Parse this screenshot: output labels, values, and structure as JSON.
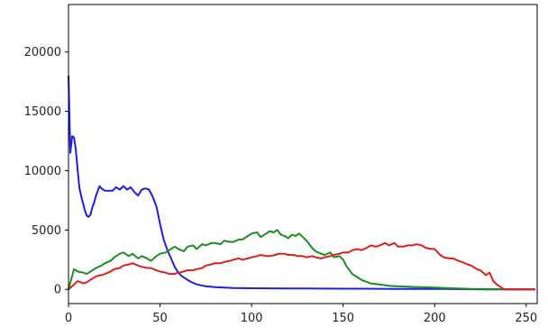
{
  "chart_data": {
    "type": "line",
    "title": "",
    "xlabel": "",
    "ylabel": "",
    "xlim": [
      0,
      256
    ],
    "ylim": [
      -1200,
      24000
    ],
    "grid": false,
    "x_ticks": [
      0,
      50,
      100,
      150,
      200,
      250
    ],
    "y_ticks": [
      0,
      5000,
      10000,
      15000,
      20000
    ],
    "series": [
      {
        "color": "#1f1fe0",
        "x": [
          0,
          1,
          2,
          3,
          4,
          5,
          6,
          7,
          8,
          9,
          10,
          11,
          12,
          13,
          14,
          15,
          16,
          17,
          18,
          20,
          22,
          24,
          26,
          28,
          30,
          32,
          34,
          36,
          38,
          40,
          42,
          44,
          46,
          48,
          50,
          52,
          54,
          56,
          58,
          60,
          62,
          64,
          66,
          68,
          70,
          75,
          80,
          85,
          90,
          100,
          110,
          120,
          130,
          140,
          150,
          160,
          170,
          180,
          190,
          200,
          210,
          220,
          230,
          240,
          250,
          255
        ],
        "y": [
          18000,
          11500,
          12900,
          12800,
          11800,
          10000,
          8500,
          7800,
          7200,
          6600,
          6200,
          6100,
          6300,
          6900,
          7300,
          7900,
          8300,
          8700,
          8500,
          8300,
          8300,
          8300,
          8600,
          8400,
          8700,
          8400,
          8600,
          8200,
          7900,
          8400,
          8500,
          8400,
          7800,
          7000,
          5500,
          4200,
          3300,
          2600,
          1900,
          1400,
          1100,
          900,
          700,
          550,
          420,
          260,
          180,
          140,
          110,
          90,
          80,
          70,
          65,
          60,
          55,
          50,
          45,
          40,
          35,
          30,
          20,
          10,
          0,
          0,
          0,
          0
        ]
      },
      {
        "color": "#1e8c1e",
        "x": [
          0,
          3,
          5,
          8,
          10,
          12,
          15,
          18,
          20,
          23,
          25,
          28,
          30,
          33,
          35,
          38,
          40,
          43,
          45,
          48,
          50,
          53,
          55,
          58,
          60,
          63,
          65,
          68,
          70,
          73,
          75,
          78,
          80,
          83,
          85,
          88,
          90,
          93,
          95,
          98,
          100,
          103,
          105,
          108,
          110,
          112,
          114,
          116,
          118,
          120,
          122,
          124,
          126,
          128,
          130,
          133,
          135,
          138,
          140,
          143,
          145,
          148,
          150,
          152,
          155,
          158,
          160,
          165,
          170,
          175,
          180,
          190,
          200,
          210,
          220,
          230,
          240,
          250,
          255
        ],
        "y": [
          0,
          1700,
          1500,
          1400,
          1300,
          1500,
          1800,
          2000,
          2200,
          2400,
          2700,
          3000,
          3100,
          2800,
          3000,
          2600,
          2800,
          2600,
          2400,
          2800,
          3000,
          3100,
          3300,
          3600,
          3400,
          3200,
          3600,
          3700,
          3400,
          3800,
          3700,
          3900,
          3900,
          3800,
          4100,
          4000,
          4000,
          4200,
          4200,
          4500,
          4700,
          4800,
          4400,
          4700,
          4900,
          4800,
          5000,
          4600,
          4500,
          4300,
          4600,
          4500,
          4700,
          4400,
          4100,
          3500,
          3200,
          3000,
          2900,
          3100,
          2700,
          2800,
          2500,
          1900,
          1300,
          1000,
          800,
          500,
          400,
          300,
          250,
          200,
          150,
          80,
          40,
          20,
          10,
          0,
          0
        ]
      },
      {
        "color": "#d92020",
        "x": [
          0,
          3,
          5,
          8,
          10,
          13,
          15,
          18,
          20,
          23,
          25,
          28,
          30,
          33,
          35,
          38,
          40,
          43,
          45,
          48,
          50,
          53,
          55,
          58,
          60,
          63,
          65,
          68,
          70,
          73,
          75,
          78,
          80,
          83,
          85,
          88,
          90,
          93,
          95,
          98,
          100,
          103,
          105,
          108,
          110,
          113,
          115,
          118,
          120,
          123,
          125,
          128,
          130,
          133,
          135,
          138,
          140,
          143,
          145,
          148,
          150,
          153,
          155,
          158,
          160,
          163,
          165,
          168,
          170,
          173,
          175,
          178,
          180,
          183,
          185,
          188,
          190,
          193,
          195,
          198,
          200,
          203,
          205,
          208,
          210,
          213,
          215,
          218,
          220,
          223,
          225,
          228,
          230,
          232,
          234,
          236,
          238,
          240,
          245,
          250,
          255
        ],
        "y": [
          0,
          400,
          700,
          500,
          600,
          900,
          1100,
          1200,
          1300,
          1500,
          1700,
          1800,
          2000,
          2100,
          2200,
          2000,
          1900,
          1800,
          1800,
          1600,
          1500,
          1400,
          1300,
          1300,
          1400,
          1500,
          1600,
          1600,
          1700,
          1800,
          2000,
          2100,
          2200,
          2200,
          2300,
          2400,
          2500,
          2600,
          2500,
          2600,
          2700,
          2800,
          2900,
          2800,
          2800,
          2900,
          3000,
          3000,
          2900,
          2900,
          2800,
          2800,
          2700,
          2800,
          2700,
          2600,
          2700,
          2800,
          2900,
          3000,
          3100,
          3100,
          3300,
          3400,
          3300,
          3500,
          3700,
          3600,
          3700,
          3900,
          3700,
          3900,
          3600,
          3600,
          3700,
          3700,
          3800,
          3700,
          3500,
          3400,
          3400,
          2900,
          2700,
          2600,
          2600,
          2400,
          2300,
          2100,
          2000,
          1700,
          1600,
          1200,
          1400,
          700,
          400,
          200,
          0,
          0,
          0,
          0,
          0
        ]
      }
    ]
  },
  "colors": {
    "axis": "#000000",
    "background": "#ffffff",
    "tick_text": "#222222"
  }
}
